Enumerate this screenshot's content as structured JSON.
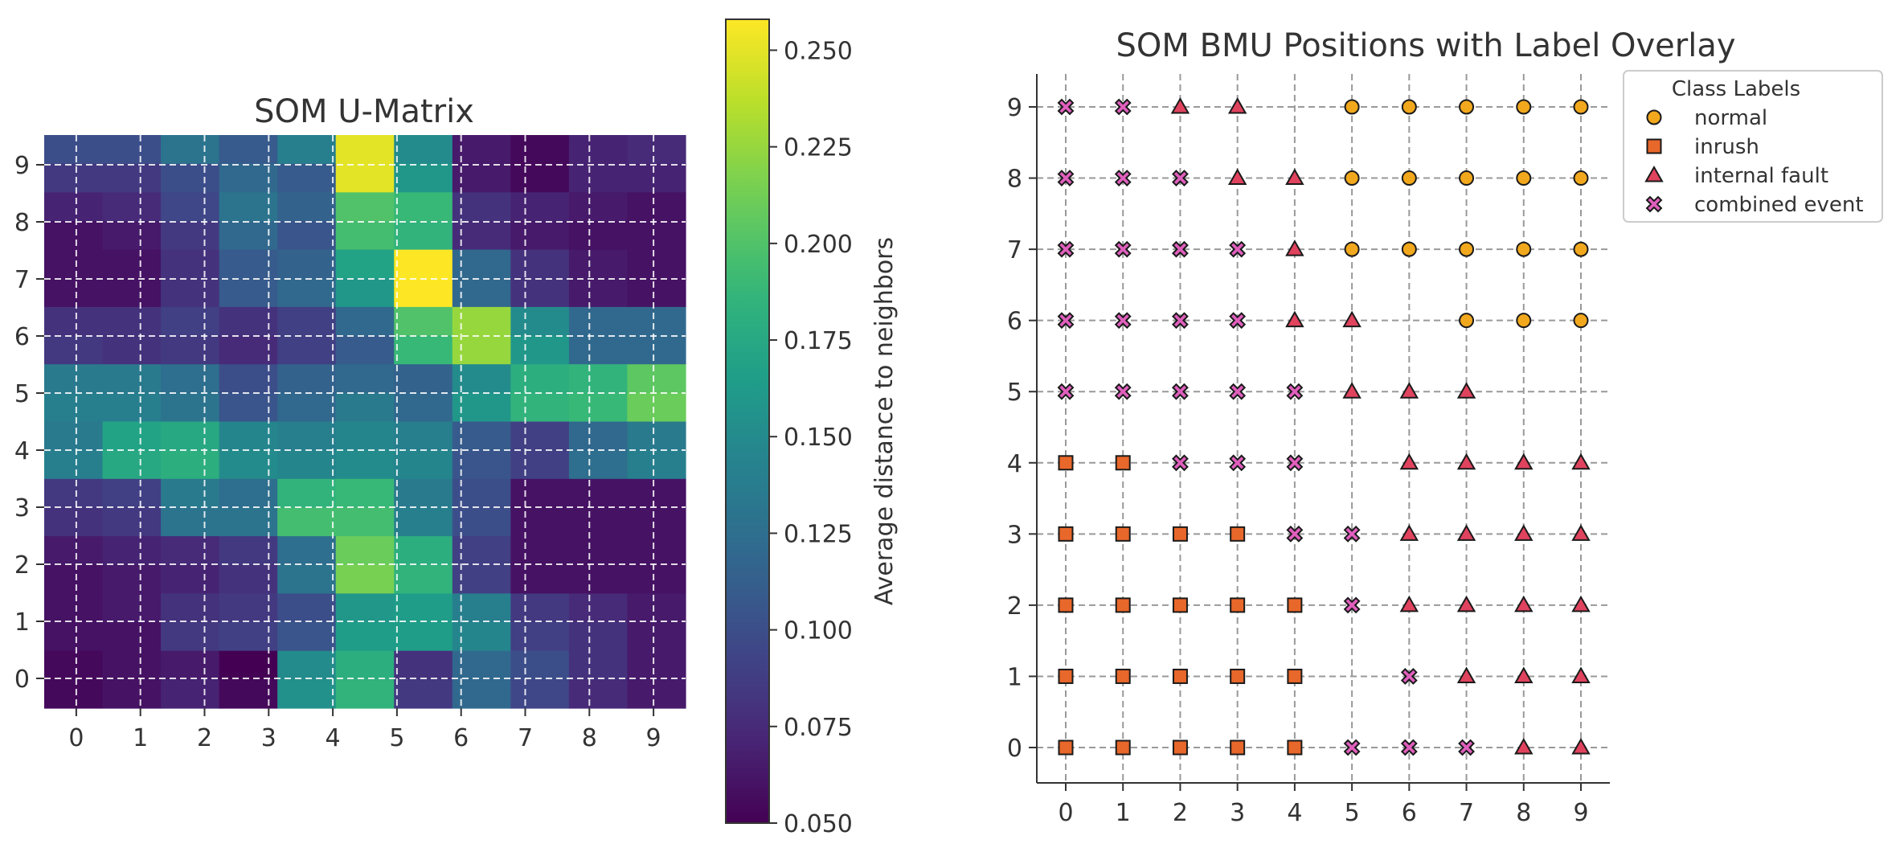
{
  "chart_data": [
    {
      "type": "heatmap",
      "title": "SOM U-Matrix",
      "xlabel": "",
      "ylabel": "",
      "x": [
        0,
        1,
        2,
        3,
        4,
        5,
        6,
        7,
        8,
        9
      ],
      "y": [
        0,
        1,
        2,
        3,
        4,
        5,
        6,
        7,
        8,
        9
      ],
      "grid": true,
      "rows_top_to_bottom": [
        [
          0.1,
          0.1,
          0.13,
          0.11,
          0.14,
          0.25,
          0.15,
          0.065,
          0.055,
          0.07,
          0.075
        ],
        [
          0.085,
          0.085,
          0.1,
          0.12,
          0.11,
          0.25,
          0.16,
          0.065,
          0.055,
          0.07,
          0.07
        ],
        [
          0.07,
          0.075,
          0.095,
          0.13,
          0.115,
          0.2,
          0.19,
          0.08,
          0.07,
          0.065,
          0.06
        ],
        [
          0.06,
          0.065,
          0.085,
          0.12,
          0.105,
          0.195,
          0.185,
          0.075,
          0.065,
          0.06,
          0.06
        ],
        [
          0.06,
          0.06,
          0.08,
          0.11,
          0.115,
          0.17,
          0.258,
          0.12,
          0.08,
          0.065,
          0.06
        ],
        [
          0.06,
          0.06,
          0.08,
          0.11,
          0.12,
          0.16,
          0.258,
          0.12,
          0.08,
          0.065,
          0.06
        ],
        [
          0.08,
          0.08,
          0.09,
          0.08,
          0.09,
          0.12,
          0.2,
          0.225,
          0.15,
          0.12,
          0.12
        ],
        [
          0.085,
          0.08,
          0.085,
          0.075,
          0.09,
          0.11,
          0.19,
          0.225,
          0.16,
          0.12,
          0.12
        ],
        [
          0.135,
          0.135,
          0.125,
          0.1,
          0.115,
          0.12,
          0.115,
          0.15,
          0.18,
          0.185,
          0.205
        ],
        [
          0.14,
          0.14,
          0.13,
          0.105,
          0.12,
          0.135,
          0.12,
          0.16,
          0.185,
          0.19,
          0.21
        ],
        [
          0.135,
          0.17,
          0.175,
          0.145,
          0.14,
          0.145,
          0.14,
          0.11,
          0.09,
          0.12,
          0.135
        ],
        [
          0.14,
          0.175,
          0.18,
          0.15,
          0.145,
          0.15,
          0.145,
          0.105,
          0.09,
          0.125,
          0.14
        ],
        [
          0.085,
          0.09,
          0.135,
          0.125,
          0.185,
          0.19,
          0.135,
          0.1,
          0.06,
          0.06,
          0.06
        ],
        [
          0.08,
          0.085,
          0.13,
          0.13,
          0.195,
          0.195,
          0.14,
          0.1,
          0.06,
          0.06,
          0.06
        ],
        [
          0.065,
          0.07,
          0.075,
          0.085,
          0.125,
          0.21,
          0.18,
          0.09,
          0.06,
          0.06,
          0.06
        ],
        [
          0.06,
          0.065,
          0.07,
          0.08,
          0.13,
          0.215,
          0.185,
          0.09,
          0.06,
          0.06,
          0.06
        ],
        [
          0.06,
          0.065,
          0.08,
          0.085,
          0.1,
          0.16,
          0.165,
          0.14,
          0.085,
          0.075,
          0.065
        ],
        [
          0.06,
          0.06,
          0.085,
          0.09,
          0.105,
          0.165,
          0.165,
          0.145,
          0.09,
          0.08,
          0.065
        ],
        [
          0.055,
          0.06,
          0.065,
          0.05,
          0.15,
          0.18,
          0.08,
          0.12,
          0.1,
          0.08,
          0.065
        ],
        [
          0.055,
          0.06,
          0.07,
          0.055,
          0.155,
          0.185,
          0.085,
          0.12,
          0.095,
          0.075,
          0.065
        ]
      ],
      "colorbar": {
        "label": "Average distance to neighbors",
        "vmin": 0.05,
        "vmax": 0.258,
        "ticks": [
          "0.050",
          "0.075",
          "0.100",
          "0.125",
          "0.150",
          "0.175",
          "0.200",
          "0.225",
          "0.250"
        ],
        "colormap": "viridis"
      }
    },
    {
      "type": "scatter",
      "title": "SOM BMU Positions with Label Overlay",
      "xlabel": "",
      "ylabel": "",
      "xlim": [
        -0.5,
        9.5
      ],
      "ylim": [
        -0.5,
        9.5
      ],
      "ticks": [
        "0",
        "1",
        "2",
        "3",
        "4",
        "5",
        "6",
        "7",
        "8",
        "9"
      ],
      "grid": true,
      "legend_title": "Class Labels",
      "legend_position": "outside top-right",
      "series": [
        {
          "name": "normal",
          "marker": "circle",
          "color": "#f2a81d",
          "points": [
            [
              5,
              9
            ],
            [
              6,
              9
            ],
            [
              7,
              9
            ],
            [
              8,
              9
            ],
            [
              9,
              9
            ],
            [
              5,
              8
            ],
            [
              6,
              8
            ],
            [
              7,
              8
            ],
            [
              8,
              8
            ],
            [
              9,
              8
            ],
            [
              5,
              7
            ],
            [
              6,
              7
            ],
            [
              7,
              7
            ],
            [
              8,
              7
            ],
            [
              9,
              7
            ],
            [
              7,
              6
            ],
            [
              8,
              6
            ],
            [
              9,
              6
            ]
          ]
        },
        {
          "name": "inrush",
          "marker": "square",
          "color": "#e8672a",
          "points": [
            [
              0,
              4
            ],
            [
              1,
              4
            ],
            [
              0,
              3
            ],
            [
              1,
              3
            ],
            [
              2,
              3
            ],
            [
              3,
              3
            ],
            [
              0,
              2
            ],
            [
              1,
              2
            ],
            [
              2,
              2
            ],
            [
              3,
              2
            ],
            [
              4,
              2
            ],
            [
              0,
              1
            ],
            [
              1,
              1
            ],
            [
              2,
              1
            ],
            [
              3,
              1
            ],
            [
              4,
              1
            ],
            [
              0,
              0
            ],
            [
              1,
              0
            ],
            [
              2,
              0
            ],
            [
              3,
              0
            ],
            [
              4,
              0
            ]
          ]
        },
        {
          "name": "internal fault",
          "marker": "triangle",
          "color": "#e0435e",
          "points": [
            [
              2,
              9
            ],
            [
              3,
              9
            ],
            [
              3,
              8
            ],
            [
              4,
              8
            ],
            [
              4,
              7
            ],
            [
              4,
              6
            ],
            [
              5,
              6
            ],
            [
              5,
              5
            ],
            [
              6,
              5
            ],
            [
              7,
              5
            ],
            [
              6,
              4
            ],
            [
              7,
              4
            ],
            [
              8,
              4
            ],
            [
              9,
              4
            ],
            [
              6,
              3
            ],
            [
              7,
              3
            ],
            [
              8,
              3
            ],
            [
              9,
              3
            ],
            [
              6,
              2
            ],
            [
              7,
              2
            ],
            [
              8,
              2
            ],
            [
              9,
              2
            ],
            [
              7,
              1
            ],
            [
              8,
              1
            ],
            [
              9,
              1
            ],
            [
              8,
              0
            ],
            [
              9,
              0
            ]
          ]
        },
        {
          "name": "combined event",
          "marker": "x",
          "color": "#e05fbd",
          "points": [
            [
              0,
              9
            ],
            [
              1,
              9
            ],
            [
              0,
              8
            ],
            [
              1,
              8
            ],
            [
              2,
              8
            ],
            [
              0,
              7
            ],
            [
              1,
              7
            ],
            [
              2,
              7
            ],
            [
              3,
              7
            ],
            [
              0,
              6
            ],
            [
              1,
              6
            ],
            [
              2,
              6
            ],
            [
              3,
              6
            ],
            [
              0,
              5
            ],
            [
              1,
              5
            ],
            [
              2,
              5
            ],
            [
              3,
              5
            ],
            [
              4,
              5
            ],
            [
              2,
              4
            ],
            [
              3,
              4
            ],
            [
              4,
              4
            ],
            [
              4,
              3
            ],
            [
              5,
              3
            ],
            [
              5,
              2
            ],
            [
              6,
              1
            ],
            [
              5,
              0
            ],
            [
              6,
              0
            ],
            [
              7,
              0
            ]
          ]
        }
      ]
    }
  ]
}
